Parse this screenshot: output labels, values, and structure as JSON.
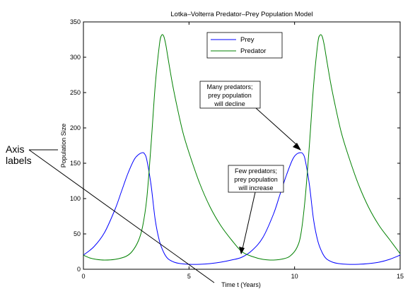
{
  "chart_data": {
    "type": "line",
    "title": "Lotka–Volterra Predator–Prey Population Model",
    "xlabel": "Time t (Years)",
    "ylabel": "Population Size",
    "xlim": [
      0,
      15
    ],
    "ylim": [
      0,
      350
    ],
    "xticks": [
      0,
      5,
      10,
      15
    ],
    "yticks": [
      0,
      50,
      100,
      150,
      200,
      250,
      300,
      350
    ],
    "grid": false,
    "legend_position": "top-center",
    "series": [
      {
        "name": "Prey",
        "color": "#0000ff",
        "x": [
          0,
          0.5,
          1.0,
          1.5,
          1.8,
          2.1,
          2.4,
          2.6,
          2.8,
          2.9,
          3.0,
          3.2,
          3.4,
          3.6,
          3.8,
          4.0,
          4.3,
          4.6,
          5.0,
          5.5,
          6.0,
          6.5,
          7.0,
          7.5,
          8.0,
          8.5,
          9.0,
          9.3,
          9.6,
          9.9,
          10.1,
          10.3,
          10.4,
          10.5,
          10.7,
          10.9,
          11.1,
          11.3,
          11.5,
          11.8,
          12.1,
          12.5,
          13.0,
          13.5,
          14.0,
          14.5,
          15.0
        ],
        "values": [
          20,
          32,
          52,
          85,
          110,
          135,
          155,
          162,
          165,
          163,
          155,
          120,
          70,
          40,
          24,
          15,
          10,
          8,
          7,
          7,
          8,
          10,
          13,
          17,
          27,
          45,
          78,
          105,
          132,
          155,
          163,
          165,
          163,
          155,
          120,
          70,
          40,
          24,
          15,
          10,
          8,
          7,
          7,
          8,
          10,
          14,
          20
        ]
      },
      {
        "name": "Predator",
        "color": "#008000",
        "x": [
          0,
          0.3,
          0.6,
          1.0,
          1.5,
          2.0,
          2.3,
          2.6,
          2.8,
          3.0,
          3.2,
          3.4,
          3.6,
          3.7,
          3.8,
          3.9,
          4.0,
          4.2,
          4.4,
          4.7,
          5.0,
          5.5,
          6.0,
          6.5,
          7.0,
          7.5,
          8.0,
          8.5,
          9.0,
          9.5,
          9.8,
          10.1,
          10.3,
          10.5,
          10.7,
          10.9,
          11.1,
          11.2,
          11.3,
          11.4,
          11.5,
          11.7,
          11.9,
          12.2,
          12.5,
          13.0,
          13.5,
          14.0,
          14.5,
          15.0
        ],
        "values": [
          20,
          16,
          14,
          13,
          14,
          18,
          25,
          40,
          60,
          100,
          175,
          260,
          318,
          331,
          330,
          318,
          300,
          265,
          235,
          195,
          165,
          122,
          88,
          62,
          42,
          25,
          18,
          14,
          13,
          15,
          19,
          30,
          50,
          100,
          175,
          260,
          320,
          331,
          330,
          318,
          300,
          265,
          235,
          195,
          165,
          122,
          88,
          62,
          42,
          22
        ]
      }
    ],
    "annotations": [
      {
        "lines": [
          "Many predators;",
          "prey population",
          "will decline"
        ],
        "target": [
          10.3,
          165
        ]
      },
      {
        "lines": [
          "Few predators;",
          "prey population",
          "will increase"
        ],
        "target": [
          7.4,
          20
        ]
      }
    ],
    "callout": {
      "lines": [
        "Axis",
        "labels"
      ]
    }
  }
}
